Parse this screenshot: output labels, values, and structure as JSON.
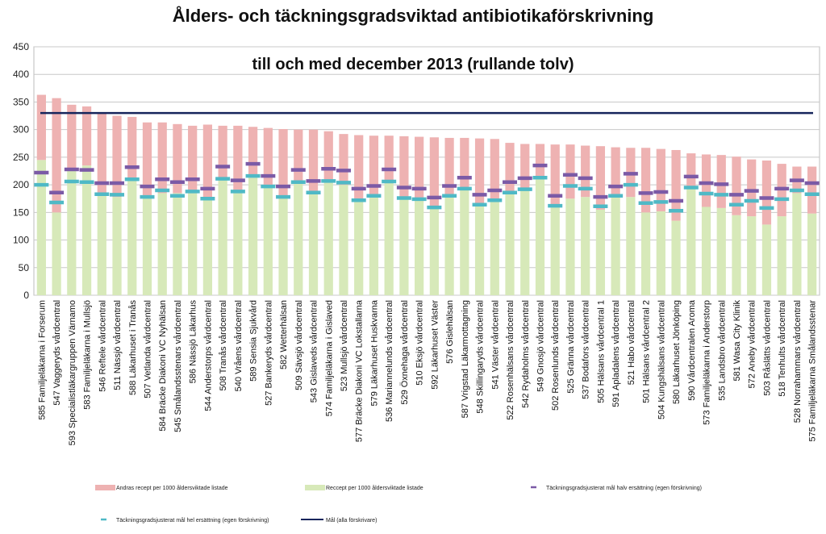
{
  "chart_data": {
    "type": "bar",
    "title": "Ålders- och täckningsgradsviktad antibiotikaförskrivning",
    "subtitle": "till och med  december 2013 (rullande tolv)",
    "ylim": [
      0,
      450
    ],
    "yticks": [
      0,
      50,
      100,
      150,
      200,
      250,
      300,
      350,
      400,
      450
    ],
    "grid": true,
    "categories": [
      "585 Familjeläkarna i Forserum",
      "547 Vaggeryds vårdcentral",
      "593 Specialistläkargruppen Värnamo",
      "583 Familjeläkarna i Mullsjö",
      "546 Reftele vårdcentral",
      "511 Nässjö vårdcentral",
      "588 Läkarhuset i Tranås",
      "507 Vetlanda vårdcentral",
      "584 Bräcke Diakoni VC Nyhälsan",
      "545 Smålandsstenars vårdcentral",
      "586 Nässjö Läkarhus",
      "544 Anderstorps vårdcentral",
      "508 Tranås vårdcentral",
      "540 Vråens vårdcentral",
      "589 Sensia Sjukvård",
      "527 Bankeryds vårdcentral",
      "582 Wetterhälsan",
      "509 Sävsjö vårdcentral",
      "543 Gislaveds vårdcentral",
      "574 Familjeläkarna i Gislaved",
      "523 Mullsjö vårdcentral",
      "577 Bräcke Diakoni VC Lokstallarna",
      "579 Läkarhuset Huskvarna",
      "536 Mariannelunds vårdcentral",
      "529 Öxnehaga vårdcentral",
      "510 Eksjö vårdcentral",
      "592 Läkarhuset Väster",
      "576 Gislehälsan",
      "587 Vrigstad Läkarmottagning",
      "548 Skillingaryds vårdcentral",
      "541 Väster vårdcentral",
      "522 Rosenhälsans vårdcentral",
      "542 Rydaholms vårdcentral",
      "549 Gnosjö vårdcentral",
      "502 Rosenlunds vårdcentral",
      "525 Gränna vårdcentral",
      "537 Bodafors vårdcentral",
      "505 Hälsans vårdcentral 1",
      "591 Apladalens vårdcentral",
      "521 Habo vårdcentral",
      "501 Hälsans vårdcentral 2",
      "504 Kungshälsans vårdcentral",
      "580 Läkarhuset Jönköping",
      "590 Vårdcentralen Aroma",
      "573 Familjeläkarna i Anderstorp",
      "535 Landsbro vårdcentral",
      "581 Wasa City Klinik",
      "572 Aneby vårdcentral",
      "503 Råslätts vårdcentral",
      "518 Tenhults vårdcentral",
      "528 Norrahammars vårdcentral",
      "575 Familjeläkarna Smålandsstenar"
    ],
    "series": [
      {
        "name": "Reccept per 1000 åldersviktade listade",
        "color": "#d7e9b9",
        "values": [
          245,
          150,
          225,
          235,
          185,
          178,
          210,
          178,
          185,
          185,
          185,
          175,
          210,
          185,
          215,
          195,
          180,
          203,
          185,
          205,
          200,
          173,
          182,
          203,
          175,
          172,
          160,
          183,
          190,
          163,
          172,
          188,
          190,
          210,
          162,
          175,
          178,
          155,
          178,
          178,
          150,
          152,
          135,
          195,
          160,
          158,
          145,
          143,
          128,
          143,
          185,
          148
        ]
      },
      {
        "name": "Andras recept per 1000 åldersviktade listade",
        "color": "#eeb2b2",
        "values": [
          118,
          207,
          120,
          107,
          145,
          147,
          113,
          135,
          128,
          125,
          122,
          134,
          97,
          122,
          90,
          108,
          121,
          97,
          115,
          92,
          92,
          117,
          107,
          86,
          113,
          115,
          126,
          102,
          95,
          121,
          111,
          88,
          84,
          64,
          111,
          98,
          93,
          115,
          90,
          89,
          117,
          113,
          128,
          62,
          95,
          96,
          106,
          103,
          116,
          95,
          48,
          85
        ]
      }
    ],
    "markers": [
      {
        "name": "Täckningsgradsjusterat mål halv ersättning (egen förskrivning)",
        "color": "#7b5aa6",
        "values": [
          222,
          186,
          228,
          227,
          203,
          203,
          232,
          197,
          210,
          205,
          210,
          193,
          233,
          208,
          238,
          216,
          197,
          227,
          207,
          229,
          226,
          193,
          198,
          228,
          195,
          193,
          177,
          198,
          213,
          182,
          190,
          205,
          212,
          235,
          180,
          218,
          212,
          178,
          197,
          220,
          185,
          187,
          171,
          215,
          203,
          201,
          182,
          189,
          176,
          193,
          208,
          203
        ]
      },
      {
        "name": "Täckningsgradsjusterat mål hel ersättning (egen förskrivning)",
        "color": "#4fb9c6",
        "values": [
          200,
          168,
          206,
          205,
          183,
          182,
          210,
          178,
          190,
          180,
          188,
          175,
          211,
          188,
          216,
          197,
          178,
          205,
          186,
          207,
          204,
          172,
          180,
          206,
          176,
          174,
          159,
          180,
          193,
          164,
          172,
          186,
          192,
          213,
          162,
          198,
          193,
          161,
          180,
          200,
          167,
          169,
          153,
          195,
          184,
          182,
          164,
          171,
          158,
          174,
          190,
          183
        ]
      }
    ],
    "reference_line": {
      "name": "Mål (alla förskrivare)",
      "value": 330,
      "color": "#16255c"
    },
    "legend_placement": "bottom"
  }
}
